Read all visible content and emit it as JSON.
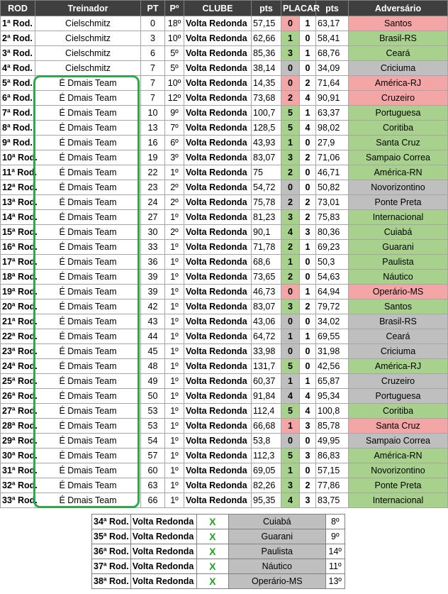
{
  "headers": [
    "ROD",
    "Treinador",
    "PT",
    "Pº",
    "CLUBE",
    "pts",
    "PLACAR",
    "pts",
    "Adversário"
  ],
  "result_colors": {
    "win": "#a9d18e",
    "draw": "#bfbfbf",
    "loss": "#f4a6a6"
  },
  "rows": [
    {
      "rod": "1ª Rod.",
      "coach": "Cielschmitz",
      "pt": "0",
      "pos": "18º",
      "club": "Volta Redonda",
      "pts": "57,15",
      "gf": "0",
      "ga": "1",
      "opp_pts": "63,17",
      "opponent": "Santos",
      "result": "loss"
    },
    {
      "rod": "2ª Rod.",
      "coach": "Cielschmitz",
      "pt": "3",
      "pos": "10º",
      "club": "Volta Redonda",
      "pts": "62,66",
      "gf": "1",
      "ga": "0",
      "opp_pts": "58,41",
      "opponent": "Brasil-RS",
      "result": "win"
    },
    {
      "rod": "3ª Rod.",
      "coach": "Cielschmitz",
      "pt": "6",
      "pos": "5º",
      "club": "Volta Redonda",
      "pts": "85,36",
      "gf": "3",
      "ga": "1",
      "opp_pts": "68,76",
      "opponent": "Ceará",
      "result": "win"
    },
    {
      "rod": "4ª Rod.",
      "coach": "Cielschmitz",
      "pt": "7",
      "pos": "5º",
      "club": "Volta Redonda",
      "pts": "38,14",
      "gf": "0",
      "ga": "0",
      "opp_pts": "34,09",
      "opponent": "Criciuma",
      "result": "draw"
    },
    {
      "rod": "5ª Rod.",
      "coach": "É Dmais Team",
      "pt": "7",
      "pos": "10º",
      "club": "Volta Redonda",
      "pts": "14,35",
      "gf": "0",
      "ga": "2",
      "opp_pts": "71,64",
      "opponent": "América-RJ",
      "result": "loss"
    },
    {
      "rod": "6ª Rod.",
      "coach": "É Dmais Team",
      "pt": "7",
      "pos": "12º",
      "club": "Volta Redonda",
      "pts": "73,68",
      "gf": "2",
      "ga": "4",
      "opp_pts": "90,91",
      "opponent": "Cruzeiro",
      "result": "loss"
    },
    {
      "rod": "7ª Rod.",
      "coach": "É Dmais Team",
      "pt": "10",
      "pos": "9º",
      "club": "Volta Redonda",
      "pts": "100,7",
      "gf": "5",
      "ga": "1",
      "opp_pts": "63,37",
      "opponent": "Portuguesa",
      "result": "win"
    },
    {
      "rod": "8ª Rod.",
      "coach": "É Dmais Team",
      "pt": "13",
      "pos": "7º",
      "club": "Volta Redonda",
      "pts": "128,5",
      "gf": "5",
      "ga": "4",
      "opp_pts": "98,02",
      "opponent": "Coritiba",
      "result": "win"
    },
    {
      "rod": "9ª Rod.",
      "coach": "É Dmais Team",
      "pt": "16",
      "pos": "6º",
      "club": "Volta Redonda",
      "pts": "43,93",
      "gf": "1",
      "ga": "0",
      "opp_pts": "27,9",
      "opponent": "Santa Cruz",
      "result": "win"
    },
    {
      "rod": "10ª Rod.",
      "coach": "É Dmais Team",
      "pt": "19",
      "pos": "3º",
      "club": "Volta Redonda",
      "pts": "83,07",
      "gf": "3",
      "ga": "2",
      "opp_pts": "71,06",
      "opponent": "Sampaio Correa",
      "result": "win"
    },
    {
      "rod": "11ª Rod.",
      "coach": "É Dmais Team",
      "pt": "22",
      "pos": "1º",
      "club": "Volta Redonda",
      "pts": "75",
      "gf": "2",
      "ga": "0",
      "opp_pts": "46,71",
      "opponent": "América-RN",
      "result": "win"
    },
    {
      "rod": "12ª Rod.",
      "coach": "É Dmais Team",
      "pt": "23",
      "pos": "2º",
      "club": "Volta Redonda",
      "pts": "54,72",
      "gf": "0",
      "ga": "0",
      "opp_pts": "50,82",
      "opponent": "Novorizontino",
      "result": "draw"
    },
    {
      "rod": "13ª Rod.",
      "coach": "É Dmais Team",
      "pt": "24",
      "pos": "2º",
      "club": "Volta Redonda",
      "pts": "75,78",
      "gf": "2",
      "ga": "2",
      "opp_pts": "73,01",
      "opponent": "Ponte Preta",
      "result": "draw"
    },
    {
      "rod": "14ª Rod.",
      "coach": "É Dmais Team",
      "pt": "27",
      "pos": "1º",
      "club": "Volta Redonda",
      "pts": "81,23",
      "gf": "3",
      "ga": "2",
      "opp_pts": "75,83",
      "opponent": "Internacional",
      "result": "win"
    },
    {
      "rod": "15ª Rod.",
      "coach": "É Dmais Team",
      "pt": "30",
      "pos": "2º",
      "club": "Volta Redonda",
      "pts": "90,1",
      "gf": "4",
      "ga": "3",
      "opp_pts": "80,36",
      "opponent": "Cuiabá",
      "result": "win"
    },
    {
      "rod": "16ª Rod.",
      "coach": "É Dmais Team",
      "pt": "33",
      "pos": "1º",
      "club": "Volta Redonda",
      "pts": "71,78",
      "gf": "2",
      "ga": "1",
      "opp_pts": "69,23",
      "opponent": "Guarani",
      "result": "win"
    },
    {
      "rod": "17ª Rod.",
      "coach": "É Dmais Team",
      "pt": "36",
      "pos": "1º",
      "club": "Volta Redonda",
      "pts": "68,6",
      "gf": "1",
      "ga": "0",
      "opp_pts": "50,3",
      "opponent": "Paulista",
      "result": "win"
    },
    {
      "rod": "18ª Rod.",
      "coach": "É Dmais Team",
      "pt": "39",
      "pos": "1º",
      "club": "Volta Redonda",
      "pts": "73,65",
      "gf": "2",
      "ga": "0",
      "opp_pts": "54,63",
      "opponent": "Náutico",
      "result": "win"
    },
    {
      "rod": "19ª Rod.",
      "coach": "É Dmais Team",
      "pt": "39",
      "pos": "1º",
      "club": "Volta Redonda",
      "pts": "46,73",
      "gf": "0",
      "ga": "1",
      "opp_pts": "64,94",
      "opponent": "Operário-MS",
      "result": "loss"
    },
    {
      "rod": "20ª Rod.",
      "coach": "É Dmais Team",
      "pt": "42",
      "pos": "1º",
      "club": "Volta Redonda",
      "pts": "83,07",
      "gf": "3",
      "ga": "2",
      "opp_pts": "79,72",
      "opponent": "Santos",
      "result": "win"
    },
    {
      "rod": "21ª Rod.",
      "coach": "É Dmais Team",
      "pt": "43",
      "pos": "1º",
      "club": "Volta Redonda",
      "pts": "43,06",
      "gf": "0",
      "ga": "0",
      "opp_pts": "34,02",
      "opponent": "Brasil-RS",
      "result": "draw"
    },
    {
      "rod": "22ª Rod.",
      "coach": "É Dmais Team",
      "pt": "44",
      "pos": "1º",
      "club": "Volta Redonda",
      "pts": "64,72",
      "gf": "1",
      "ga": "1",
      "opp_pts": "69,55",
      "opponent": "Ceará",
      "result": "draw"
    },
    {
      "rod": "23ª Rod.",
      "coach": "É Dmais Team",
      "pt": "45",
      "pos": "1º",
      "club": "Volta Redonda",
      "pts": "33,98",
      "gf": "0",
      "ga": "0",
      "opp_pts": "31,98",
      "opponent": "Criciuma",
      "result": "draw"
    },
    {
      "rod": "24ª Rod.",
      "coach": "É Dmais Team",
      "pt": "48",
      "pos": "1º",
      "club": "Volta Redonda",
      "pts": "131,7",
      "gf": "5",
      "ga": "0",
      "opp_pts": "42,56",
      "opponent": "América-RJ",
      "result": "win"
    },
    {
      "rod": "25ª Rod.",
      "coach": "É Dmais Team",
      "pt": "49",
      "pos": "1º",
      "club": "Volta Redonda",
      "pts": "60,37",
      "gf": "1",
      "ga": "1",
      "opp_pts": "65,87",
      "opponent": "Cruzeiro",
      "result": "draw"
    },
    {
      "rod": "26ª Rod.",
      "coach": "É Dmais Team",
      "pt": "50",
      "pos": "1º",
      "club": "Volta Redonda",
      "pts": "91,84",
      "gf": "4",
      "ga": "4",
      "opp_pts": "95,34",
      "opponent": "Portuguesa",
      "result": "draw"
    },
    {
      "rod": "27ª Rod.",
      "coach": "É Dmais Team",
      "pt": "53",
      "pos": "1º",
      "club": "Volta Redonda",
      "pts": "112,4",
      "gf": "5",
      "ga": "4",
      "opp_pts": "100,8",
      "opponent": "Coritiba",
      "result": "win"
    },
    {
      "rod": "28ª Rod.",
      "coach": "É Dmais Team",
      "pt": "53",
      "pos": "1º",
      "club": "Volta Redonda",
      "pts": "66,68",
      "gf": "1",
      "ga": "3",
      "opp_pts": "85,78",
      "opponent": "Santa Cruz",
      "result": "loss"
    },
    {
      "rod": "29ª Rod.",
      "coach": "É Dmais Team",
      "pt": "54",
      "pos": "1º",
      "club": "Volta Redonda",
      "pts": "53,8",
      "gf": "0",
      "ga": "0",
      "opp_pts": "49,95",
      "opponent": "Sampaio Correa",
      "result": "draw"
    },
    {
      "rod": "30ª Rod.",
      "coach": "É Dmais Team",
      "pt": "57",
      "pos": "1º",
      "club": "Volta Redonda",
      "pts": "112,3",
      "gf": "5",
      "ga": "3",
      "opp_pts": "86,83",
      "opponent": "América-RN",
      "result": "win"
    },
    {
      "rod": "31ª Rod.",
      "coach": "É Dmais Team",
      "pt": "60",
      "pos": "1º",
      "club": "Volta Redonda",
      "pts": "69,05",
      "gf": "1",
      "ga": "0",
      "opp_pts": "57,15",
      "opponent": "Novorizontino",
      "result": "win"
    },
    {
      "rod": "32ª Rod.",
      "coach": "É Dmais Team",
      "pt": "63",
      "pos": "1º",
      "club": "Volta Redonda",
      "pts": "82,26",
      "gf": "3",
      "ga": "2",
      "opp_pts": "77,86",
      "opponent": "Ponte Preta",
      "result": "win"
    },
    {
      "rod": "33ª Rod.",
      "coach": "É Dmais Team",
      "pt": "66",
      "pos": "1º",
      "club": "Volta Redonda",
      "pts": "95,35",
      "gf": "4",
      "ga": "3",
      "opp_pts": "83,75",
      "opponent": "Internacional",
      "result": "win"
    }
  ],
  "pending": [
    {
      "rod": "34ª Rod.",
      "club": "Volta Redonda",
      "mark": "X",
      "opponent": "Cuiabá",
      "opp_pos": "8º"
    },
    {
      "rod": "35ª Rod.",
      "club": "Volta Redonda",
      "mark": "X",
      "opponent": "Guarani",
      "opp_pos": "9º"
    },
    {
      "rod": "36ª Rod.",
      "club": "Volta Redonda",
      "mark": "X",
      "opponent": "Paulista",
      "opp_pos": "14º"
    },
    {
      "rod": "37ª Rod.",
      "club": "Volta Redonda",
      "mark": "X",
      "opponent": "Náutico",
      "opp_pos": "11º"
    },
    {
      "rod": "38ª Rod.",
      "club": "Volta Redonda",
      "mark": "X",
      "opponent": "Operário-MS",
      "opp_pos": "13º"
    }
  ]
}
